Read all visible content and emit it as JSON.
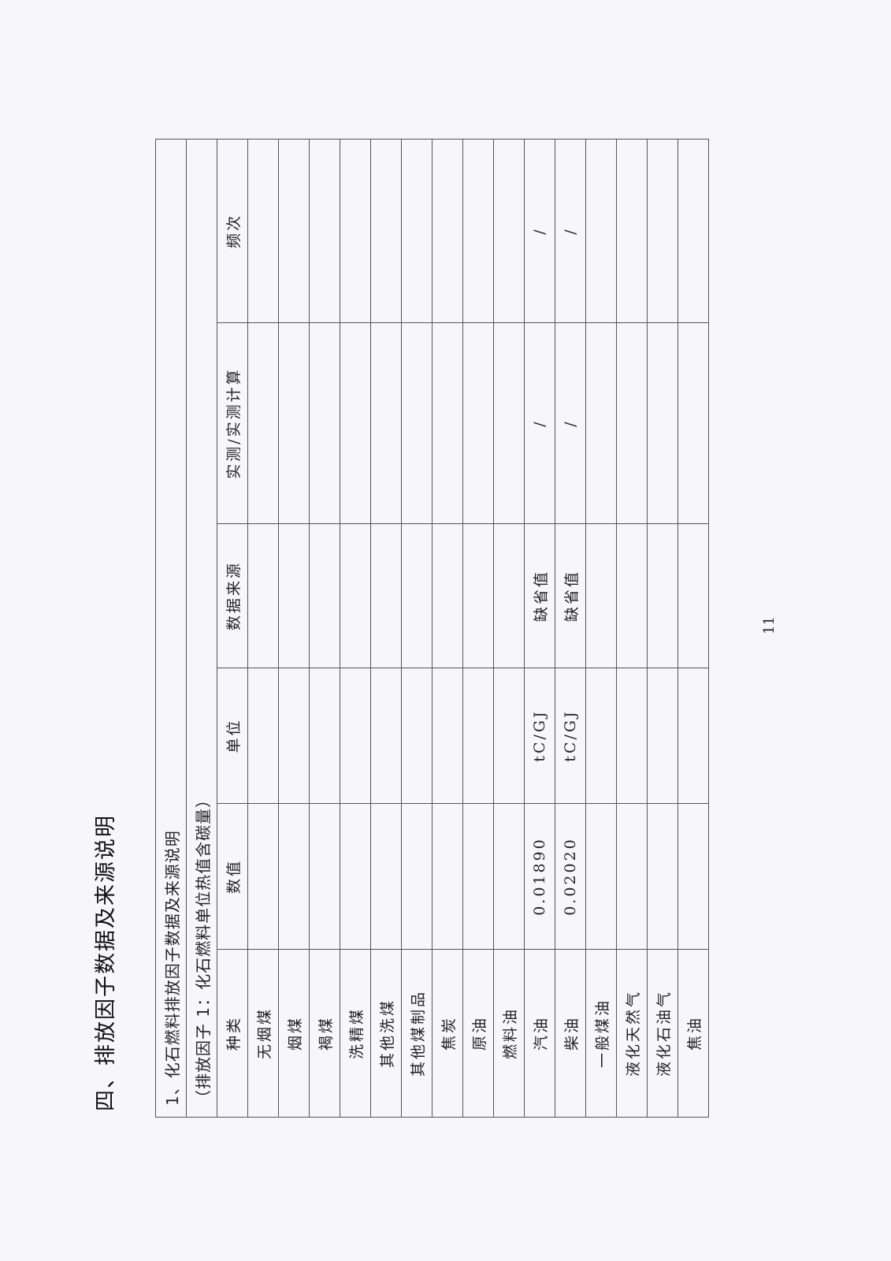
{
  "heading": "四、排放因子数据及来源说明",
  "section_title": "1、化石燃料排放因子数据及来源说明",
  "subtitle": "（排放因子 1：化石燃料单位热值含碳量）",
  "columns": [
    "种类",
    "数值",
    "单位",
    "数据来源",
    "实测/实测计算",
    "频次"
  ],
  "rows": [
    {
      "fuel": "无烟煤",
      "value": "",
      "unit": "",
      "source": "",
      "measured": "",
      "frequency": ""
    },
    {
      "fuel": "烟煤",
      "value": "",
      "unit": "",
      "source": "",
      "measured": "",
      "frequency": ""
    },
    {
      "fuel": "褐煤",
      "value": "",
      "unit": "",
      "source": "",
      "measured": "",
      "frequency": ""
    },
    {
      "fuel": "洗精煤",
      "value": "",
      "unit": "",
      "source": "",
      "measured": "",
      "frequency": ""
    },
    {
      "fuel": "其他洗煤",
      "value": "",
      "unit": "",
      "source": "",
      "measured": "",
      "frequency": ""
    },
    {
      "fuel": "其他煤制品",
      "value": "",
      "unit": "",
      "source": "",
      "measured": "",
      "frequency": ""
    },
    {
      "fuel": "焦炭",
      "value": "",
      "unit": "",
      "source": "",
      "measured": "",
      "frequency": ""
    },
    {
      "fuel": "原油",
      "value": "",
      "unit": "",
      "source": "",
      "measured": "",
      "frequency": ""
    },
    {
      "fuel": "燃料油",
      "value": "",
      "unit": "",
      "source": "",
      "measured": "",
      "frequency": ""
    },
    {
      "fuel": "汽油",
      "value": "0.01890",
      "unit": "tC/GJ",
      "source": "缺省值",
      "measured": "/",
      "frequency": "/"
    },
    {
      "fuel": "柴油",
      "value": "0.02020",
      "unit": "tC/GJ",
      "source": "缺省值",
      "measured": "/",
      "frequency": "/"
    },
    {
      "fuel": "一般煤油",
      "value": "",
      "unit": "",
      "source": "",
      "measured": "",
      "frequency": ""
    },
    {
      "fuel": "液化天然气",
      "value": "",
      "unit": "",
      "source": "",
      "measured": "",
      "frequency": ""
    },
    {
      "fuel": "液化石油气",
      "value": "",
      "unit": "",
      "source": "",
      "measured": "",
      "frequency": ""
    },
    {
      "fuel": "焦油",
      "value": "",
      "unit": "",
      "source": "",
      "measured": "",
      "frequency": ""
    }
  ],
  "page_number": "11"
}
